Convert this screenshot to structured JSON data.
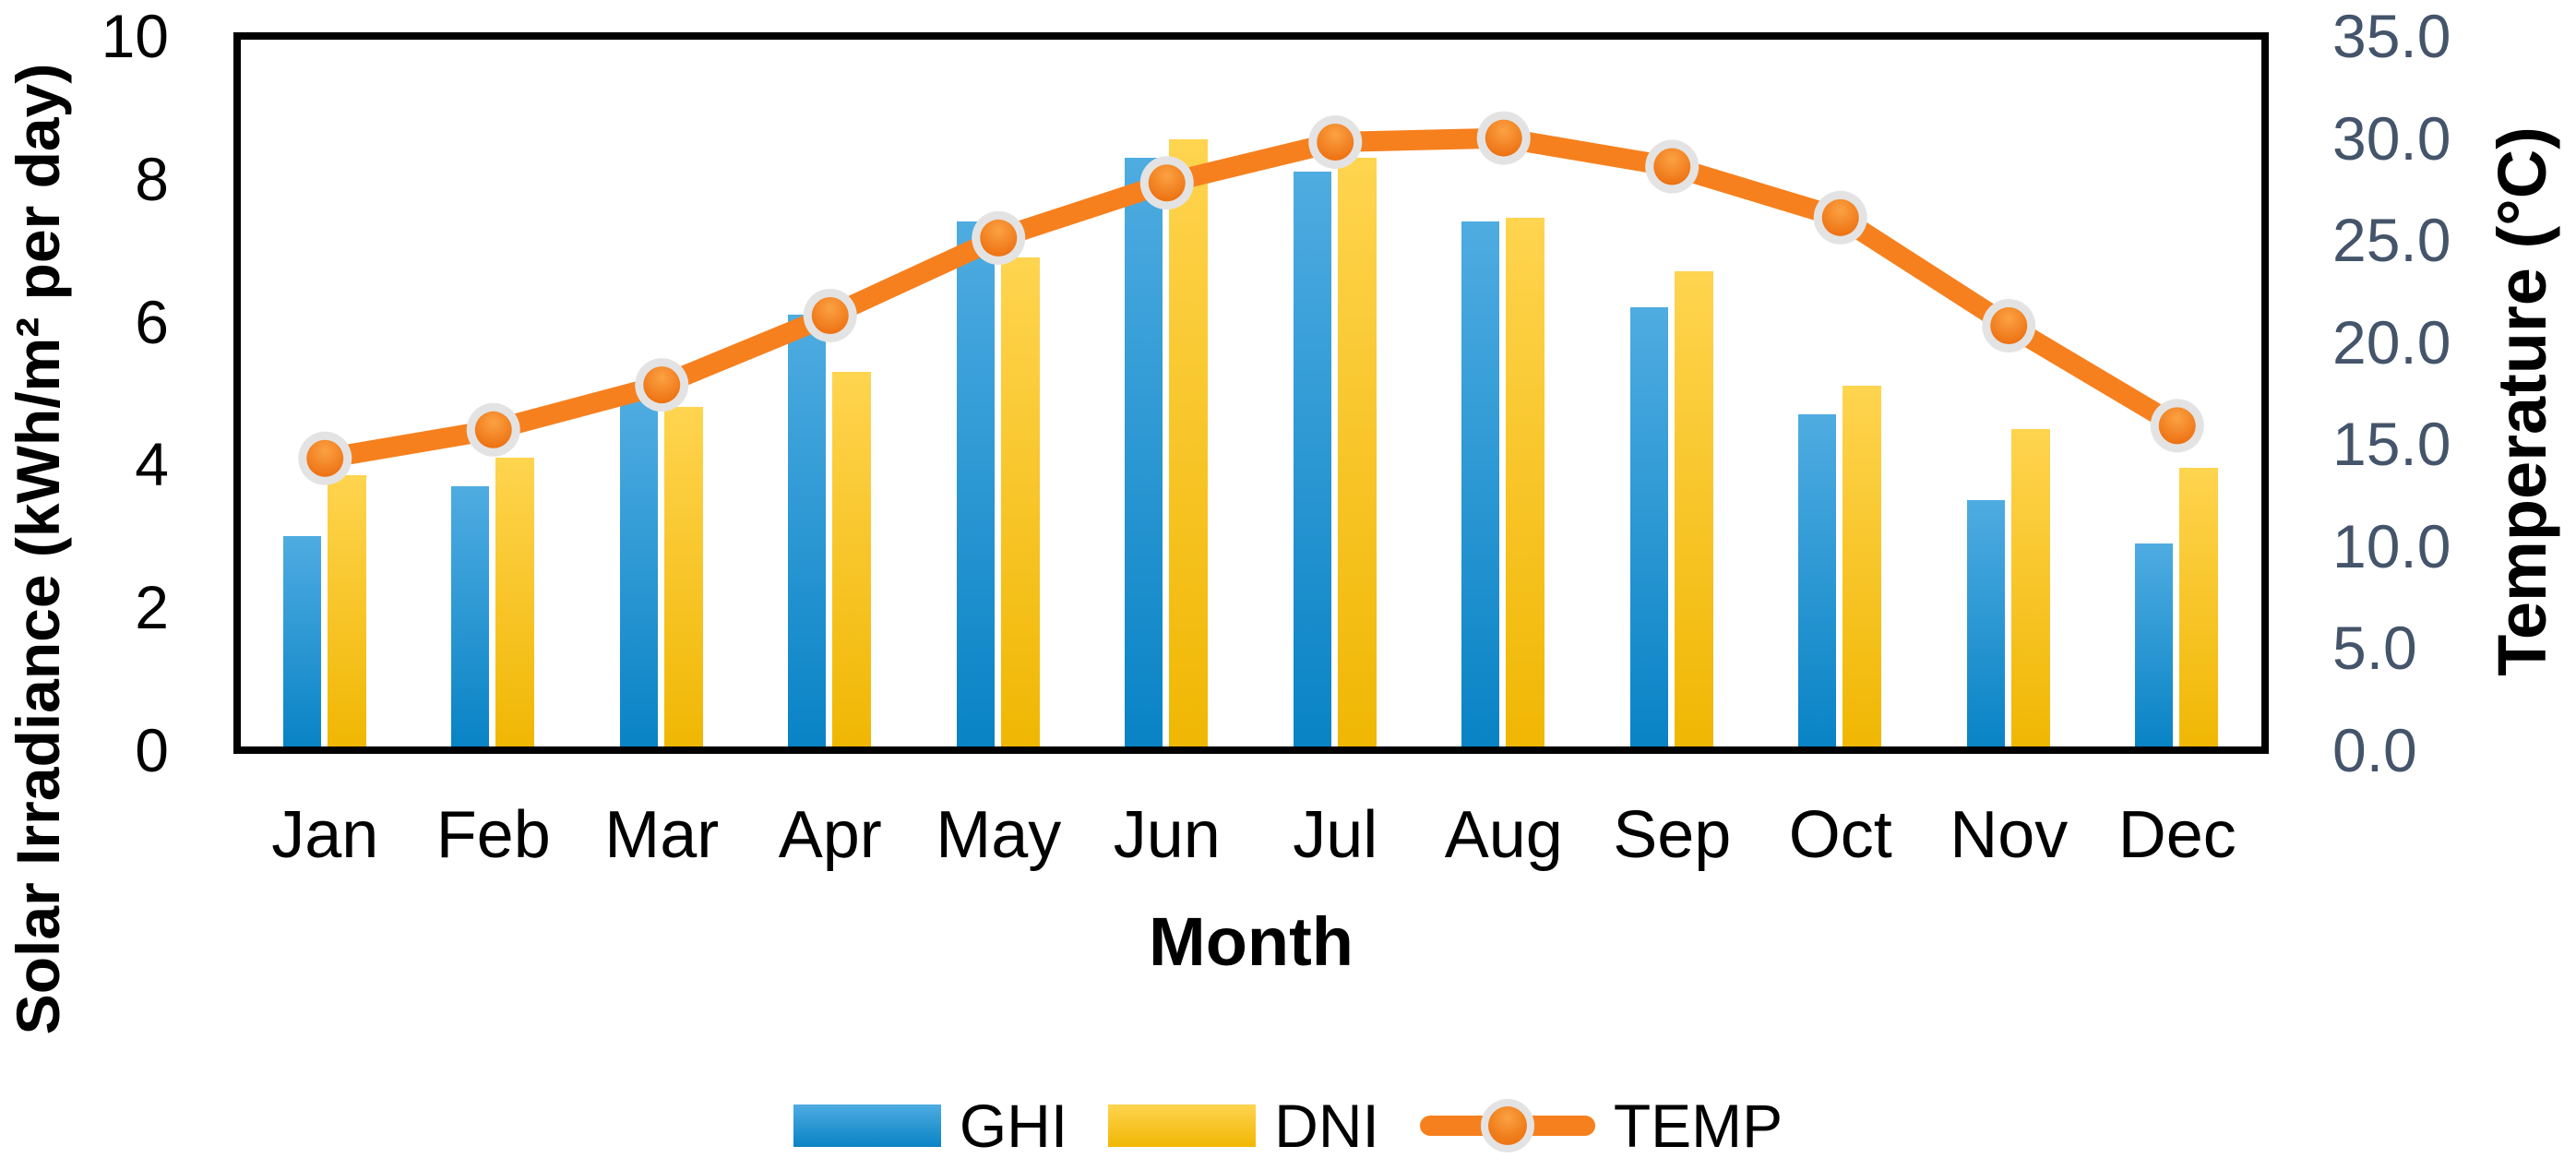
{
  "chart_data": {
    "type": "bar",
    "subtype": "combo-bar-line-dual-axis",
    "categories": [
      "Jan",
      "Feb",
      "Mar",
      "Apr",
      "May",
      "Jun",
      "Jul",
      "Aug",
      "Sep",
      "Oct",
      "Nov",
      "Dec"
    ],
    "series": [
      {
        "name": "GHI",
        "type": "bar",
        "axis": "left",
        "values": [
          3.0,
          3.7,
          4.9,
          6.1,
          7.4,
          8.3,
          8.1,
          7.4,
          6.2,
          4.7,
          3.5,
          2.9
        ],
        "color_top": "#4FACE1",
        "color_bottom": "#0983C5"
      },
      {
        "name": "DNI",
        "type": "bar",
        "axis": "left",
        "values": [
          3.85,
          4.1,
          4.8,
          5.3,
          6.9,
          8.55,
          8.3,
          7.45,
          6.7,
          5.1,
          4.5,
          3.95
        ],
        "color_top": "#FFD44F",
        "color_bottom": "#F0B703"
      },
      {
        "name": "TEMP",
        "type": "line",
        "axis": "right",
        "values": [
          14.3,
          15.7,
          17.9,
          21.3,
          25.1,
          27.8,
          29.8,
          30.0,
          28.6,
          26.1,
          20.8,
          15.9
        ],
        "color": "#F6801E",
        "marker_ring_color": "#E3E3E3",
        "marker_fill_top": "#FBA243",
        "marker_fill_bottom": "#EC6D0E"
      }
    ],
    "left_axis": {
      "title": "Solar Irradiance (kWh/m² per day)",
      "min": 0,
      "max": 10,
      "tick_step": 2,
      "tick_labels": [
        "10",
        "8",
        "6",
        "4",
        "2",
        "0"
      ],
      "color": "#000000"
    },
    "right_axis": {
      "title": "Temperature (°C)",
      "min": 0,
      "max": 35,
      "tick_step": 5,
      "tick_labels": [
        "35.0",
        "30.0",
        "25.0",
        "20.0",
        "15.0",
        "10.0",
        "5.0",
        "0.0"
      ],
      "color": "#44546A"
    },
    "x_axis": {
      "title": "Month"
    },
    "legend": {
      "position": "bottom",
      "entries": [
        "GHI",
        "DNI",
        "TEMP"
      ]
    },
    "grid": false
  }
}
